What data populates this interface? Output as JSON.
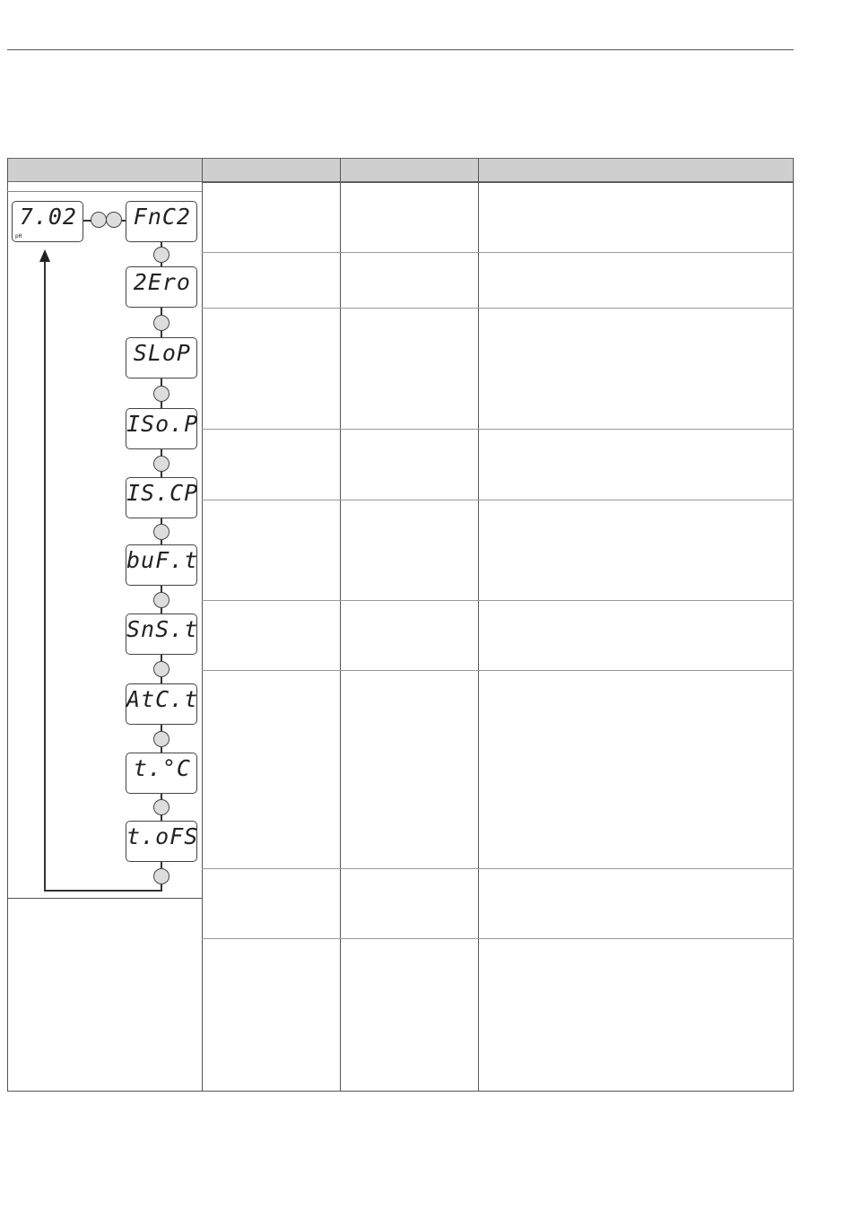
{
  "table": {
    "header": [
      "",
      "",
      "",
      ""
    ]
  },
  "menu": {
    "main_display": {
      "value": "7.02",
      "unit": "pH"
    },
    "items": [
      "FnC2",
      "2Ero",
      "SLoP",
      "ISo.P",
      "IS.CP",
      "buF.t",
      "SnS.t",
      "AtC.t",
      "t.°C",
      "t.oFS"
    ]
  }
}
